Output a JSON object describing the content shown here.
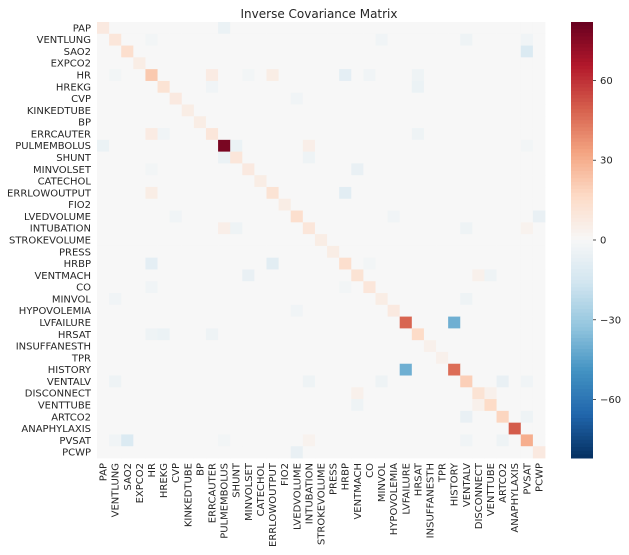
{
  "chart_data": {
    "type": "heatmap",
    "title": "Inverse Covariance Matrix",
    "labels": [
      "PAP",
      "VENTLUNG",
      "SAO2",
      "EXPCO2",
      "HR",
      "HREKG",
      "CVP",
      "KINKEDTUBE",
      "BP",
      "ERRCAUTER",
      "PULMEMBOLUS",
      "SHUNT",
      "MINVOLSET",
      "CATECHOL",
      "ERRLOWOUTPUT",
      "FIO2",
      "LVEDVOLUME",
      "INTUBATION",
      "STROKEVOLUME",
      "PRESS",
      "HRBP",
      "VENTMACH",
      "CO",
      "MINVOL",
      "HYPOVOLEMIA",
      "LVFAILURE",
      "HRSAT",
      "INSUFFANESTH",
      "TPR",
      "HISTORY",
      "VENTALV",
      "DISCONNECT",
      "VENTTUBE",
      "ARTCO2",
      "ANAPHYLAXIS",
      "PVSAT",
      "PCWP"
    ],
    "diagonal": [
      8,
      10,
      14,
      6,
      22,
      12,
      8,
      6,
      6,
      10,
      78,
      10,
      8,
      6,
      12,
      6,
      14,
      10,
      6,
      6,
      14,
      12,
      10,
      6,
      8,
      48,
      16,
      4,
      4,
      46,
      20,
      12,
      16,
      18,
      50,
      30,
      8
    ],
    "off_diagonal": [
      {
        "r": 0,
        "c": 10,
        "v": -5
      },
      {
        "r": 10,
        "c": 0,
        "v": -5
      },
      {
        "r": 1,
        "c": 4,
        "v": -2
      },
      {
        "r": 4,
        "c": 1,
        "v": -2
      },
      {
        "r": 1,
        "c": 23,
        "v": -3
      },
      {
        "r": 23,
        "c": 1,
        "v": -3
      },
      {
        "r": 1,
        "c": 30,
        "v": -4
      },
      {
        "r": 30,
        "c": 1,
        "v": -4
      },
      {
        "r": 1,
        "c": 35,
        "v": -3
      },
      {
        "r": 35,
        "c": 1,
        "v": -3
      },
      {
        "r": 2,
        "c": 35,
        "v": -12
      },
      {
        "r": 35,
        "c": 2,
        "v": -12
      },
      {
        "r": 4,
        "c": 9,
        "v": 7
      },
      {
        "r": 9,
        "c": 4,
        "v": 7
      },
      {
        "r": 4,
        "c": 12,
        "v": -2
      },
      {
        "r": 12,
        "c": 4,
        "v": -2
      },
      {
        "r": 4,
        "c": 14,
        "v": 6
      },
      {
        "r": 14,
        "c": 4,
        "v": 6
      },
      {
        "r": 4,
        "c": 20,
        "v": -8
      },
      {
        "r": 20,
        "c": 4,
        "v": -8
      },
      {
        "r": 4,
        "c": 22,
        "v": -3
      },
      {
        "r": 22,
        "c": 4,
        "v": -3
      },
      {
        "r": 4,
        "c": 26,
        "v": -4
      },
      {
        "r": 26,
        "c": 4,
        "v": -4
      },
      {
        "r": 5,
        "c": 9,
        "v": -3
      },
      {
        "r": 9,
        "c": 5,
        "v": -3
      },
      {
        "r": 5,
        "c": 26,
        "v": -5
      },
      {
        "r": 26,
        "c": 5,
        "v": -5
      },
      {
        "r": 6,
        "c": 16,
        "v": -3
      },
      {
        "r": 16,
        "c": 6,
        "v": -3
      },
      {
        "r": 10,
        "c": 11,
        "v": -5
      },
      {
        "r": 11,
        "c": 10,
        "v": -5
      },
      {
        "r": 10,
        "c": 17,
        "v": 5
      },
      {
        "r": 17,
        "c": 10,
        "v": 5
      },
      {
        "r": 10,
        "c": 35,
        "v": -2
      },
      {
        "r": 35,
        "c": 10,
        "v": -2
      },
      {
        "r": 11,
        "c": 17,
        "v": -4
      },
      {
        "r": 17,
        "c": 11,
        "v": -4
      },
      {
        "r": 12,
        "c": 21,
        "v": -6
      },
      {
        "r": 21,
        "c": 12,
        "v": -6
      },
      {
        "r": 14,
        "c": 20,
        "v": -9
      },
      {
        "r": 20,
        "c": 14,
        "v": -9
      },
      {
        "r": 16,
        "c": 24,
        "v": -3
      },
      {
        "r": 24,
        "c": 16,
        "v": -3
      },
      {
        "r": 16,
        "c": 36,
        "v": -6
      },
      {
        "r": 36,
        "c": 16,
        "v": -6
      },
      {
        "r": 17,
        "c": 30,
        "v": -4
      },
      {
        "r": 30,
        "c": 17,
        "v": -4
      },
      {
        "r": 17,
        "c": 35,
        "v": 3
      },
      {
        "r": 35,
        "c": 17,
        "v": 3
      },
      {
        "r": 20,
        "c": 22,
        "v": -2
      },
      {
        "r": 22,
        "c": 20,
        "v": -2
      },
      {
        "r": 21,
        "c": 31,
        "v": 4
      },
      {
        "r": 31,
        "c": 21,
        "v": 4
      },
      {
        "r": 21,
        "c": 32,
        "v": -4
      },
      {
        "r": 32,
        "c": 21,
        "v": -4
      },
      {
        "r": 23,
        "c": 30,
        "v": -4
      },
      {
        "r": 30,
        "c": 23,
        "v": -4
      },
      {
        "r": 25,
        "c": 29,
        "v": -40
      },
      {
        "r": 29,
        "c": 25,
        "v": -40
      },
      {
        "r": 9,
        "c": 26,
        "v": -4
      },
      {
        "r": 26,
        "c": 9,
        "v": -4
      },
      {
        "r": 30,
        "c": 33,
        "v": -6
      },
      {
        "r": 33,
        "c": 30,
        "v": -6
      },
      {
        "r": 30,
        "c": 35,
        "v": -3
      },
      {
        "r": 35,
        "c": 30,
        "v": -3
      },
      {
        "r": 31,
        "c": 32,
        "v": 4
      },
      {
        "r": 32,
        "c": 31,
        "v": 4
      },
      {
        "r": 33,
        "c": 35,
        "v": -4
      },
      {
        "r": 35,
        "c": 33,
        "v": -4
      }
    ],
    "colorbar": {
      "range": [
        -82,
        82
      ],
      "ticks": [
        60,
        30,
        0,
        -30,
        -60
      ],
      "tick_labels": [
        "60",
        "30",
        "0",
        "−30",
        "−60"
      ],
      "colormap": "RdBu_r"
    },
    "grid": false
  }
}
